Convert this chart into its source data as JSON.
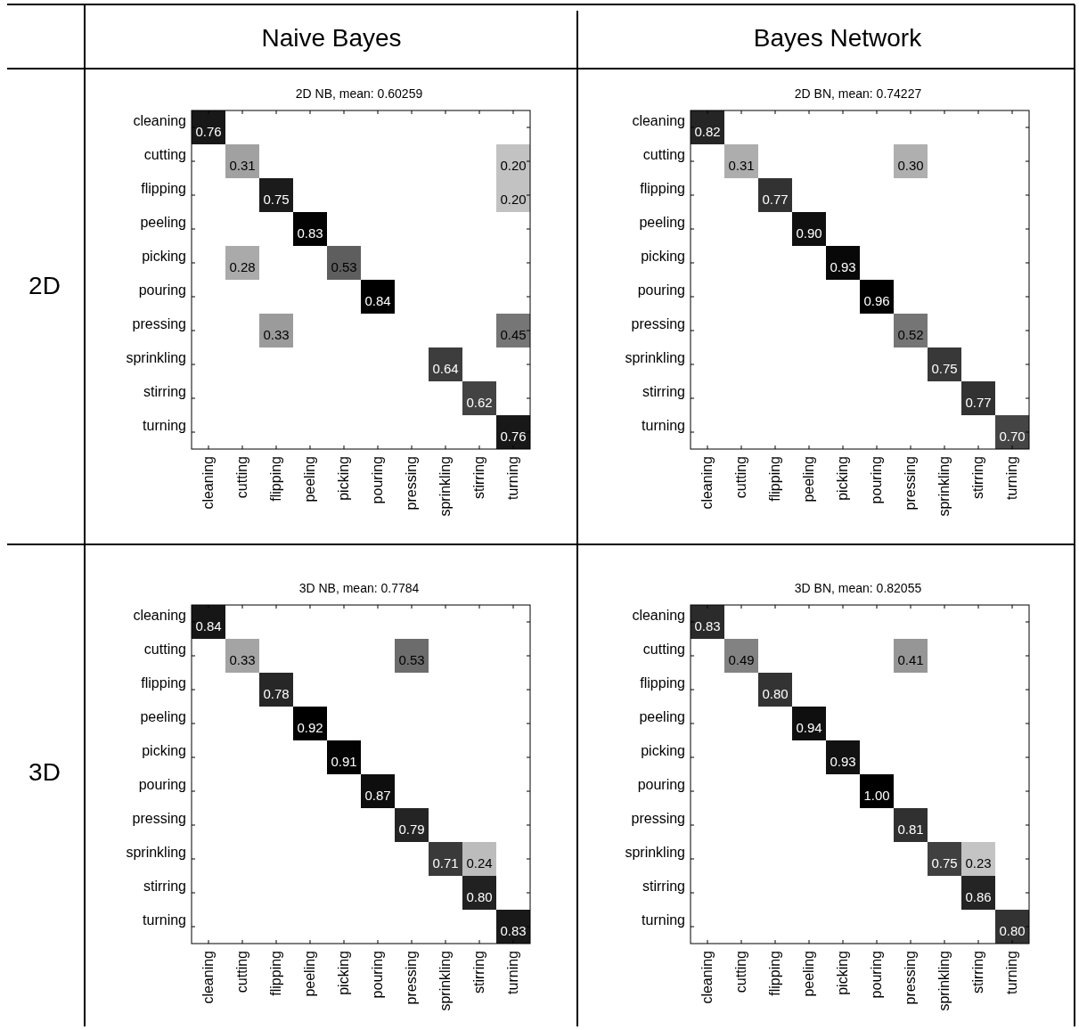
{
  "chart_data": [
    {
      "type": "heatmap",
      "title": "2D NB, mean: 0.60259",
      "annotations": [
        "Naive Bayes",
        "2D"
      ],
      "categories": [
        "cleaning",
        "cutting",
        "flipping",
        "peeling",
        "picking",
        "pouring",
        "pressing",
        "sprinkling",
        "stirring",
        "turning"
      ],
      "y_categories": [
        "cleaning",
        "cutting",
        "flipping",
        "peeling",
        "picking",
        "pouring",
        "pressing",
        "sprinkling",
        "stirring",
        "turning"
      ],
      "cells": [
        [
          0.76,
          null,
          null,
          null,
          null,
          null,
          null,
          null,
          null,
          null
        ],
        [
          null,
          0.31,
          null,
          null,
          null,
          null,
          null,
          null,
          null,
          0.2
        ],
        [
          null,
          null,
          0.75,
          null,
          null,
          null,
          null,
          null,
          null,
          0.2
        ],
        [
          null,
          null,
          null,
          0.83,
          null,
          null,
          null,
          null,
          null,
          null
        ],
        [
          null,
          0.28,
          null,
          null,
          0.53,
          null,
          null,
          null,
          null,
          null
        ],
        [
          null,
          null,
          null,
          null,
          null,
          0.84,
          null,
          null,
          null,
          null
        ],
        [
          null,
          null,
          0.33,
          null,
          null,
          null,
          null,
          null,
          null,
          0.45
        ],
        [
          null,
          null,
          null,
          null,
          null,
          null,
          null,
          0.64,
          null,
          null
        ],
        [
          null,
          null,
          null,
          null,
          null,
          null,
          null,
          null,
          0.62,
          null
        ],
        [
          null,
          null,
          null,
          null,
          null,
          null,
          null,
          null,
          null,
          0.76
        ]
      ],
      "cell_labels": [
        [
          "0.76",
          null,
          null,
          null,
          null,
          null,
          null,
          null,
          null,
          null
        ],
        [
          null,
          "0.31",
          null,
          null,
          null,
          null,
          null,
          null,
          null,
          "0.20"
        ],
        [
          null,
          null,
          "0.75",
          null,
          null,
          null,
          null,
          null,
          null,
          "0.20"
        ],
        [
          null,
          null,
          null,
          "0.83",
          null,
          null,
          null,
          null,
          null,
          null
        ],
        [
          null,
          "0.28",
          null,
          null,
          "0.53",
          null,
          null,
          null,
          null,
          null
        ],
        [
          null,
          null,
          null,
          null,
          null,
          "0.84",
          null,
          null,
          null,
          null
        ],
        [
          null,
          null,
          "0.33",
          null,
          null,
          null,
          null,
          null,
          null,
          "0.45"
        ],
        [
          null,
          null,
          null,
          null,
          null,
          null,
          null,
          "0.64",
          null,
          null
        ],
        [
          null,
          null,
          null,
          null,
          null,
          null,
          null,
          null,
          "0.62",
          null
        ],
        [
          null,
          null,
          null,
          null,
          null,
          null,
          null,
          null,
          null,
          "0.76"
        ]
      ]
    },
    {
      "type": "heatmap",
      "title": "2D BN, mean: 0.74227",
      "annotations": [
        "Bayes Network"
      ],
      "categories": [
        "cleaning",
        "cutting",
        "flipping",
        "peeling",
        "picking",
        "pouring",
        "pressing",
        "sprinkling",
        "stirring",
        "turning"
      ],
      "y_categories": [
        "cleaning",
        "cutting",
        "flipping",
        "peeling",
        "picking",
        "pouring",
        "pressing",
        "sprinkling",
        "stirring",
        "turning"
      ],
      "cells": [
        [
          0.82,
          null,
          null,
          null,
          null,
          null,
          null,
          null,
          null,
          null
        ],
        [
          null,
          0.31,
          null,
          null,
          null,
          null,
          0.3,
          null,
          null,
          null
        ],
        [
          null,
          null,
          0.77,
          null,
          null,
          null,
          null,
          null,
          null,
          null
        ],
        [
          null,
          null,
          null,
          0.9,
          null,
          null,
          null,
          null,
          null,
          null
        ],
        [
          null,
          null,
          null,
          null,
          0.93,
          null,
          null,
          null,
          null,
          null
        ],
        [
          null,
          null,
          null,
          null,
          null,
          0.96,
          null,
          null,
          null,
          null
        ],
        [
          null,
          null,
          null,
          null,
          null,
          null,
          0.52,
          null,
          null,
          null
        ],
        [
          null,
          null,
          null,
          null,
          null,
          null,
          null,
          0.75,
          null,
          null
        ],
        [
          null,
          null,
          null,
          null,
          null,
          null,
          null,
          null,
          0.77,
          null
        ],
        [
          null,
          null,
          null,
          null,
          null,
          null,
          null,
          null,
          null,
          0.7
        ]
      ],
      "cell_labels": [
        [
          "0.82",
          null,
          null,
          null,
          null,
          null,
          null,
          null,
          null,
          null
        ],
        [
          null,
          "0.31",
          null,
          null,
          null,
          null,
          "0.30",
          null,
          null,
          null
        ],
        [
          null,
          null,
          "0.77",
          null,
          null,
          null,
          null,
          null,
          null,
          null
        ],
        [
          null,
          null,
          null,
          "0.90",
          null,
          null,
          null,
          null,
          null,
          null
        ],
        [
          null,
          null,
          null,
          null,
          "0.93",
          null,
          null,
          null,
          null,
          null
        ],
        [
          null,
          null,
          null,
          null,
          null,
          "0.96",
          null,
          null,
          null,
          null
        ],
        [
          null,
          null,
          null,
          null,
          null,
          null,
          "0.52",
          null,
          null,
          null
        ],
        [
          null,
          null,
          null,
          null,
          null,
          null,
          null,
          "0.75",
          null,
          null
        ],
        [
          null,
          null,
          null,
          null,
          null,
          null,
          null,
          null,
          "0.77",
          null
        ],
        [
          null,
          null,
          null,
          null,
          null,
          null,
          null,
          null,
          null,
          "0.70"
        ]
      ]
    },
    {
      "type": "heatmap",
      "title": "3D NB, mean: 0.7784",
      "annotations": [
        "3D"
      ],
      "categories": [
        "cleaning",
        "cutting",
        "flipping",
        "peeling",
        "picking",
        "pouring",
        "pressing",
        "sprinkling",
        "stirring",
        "turning"
      ],
      "y_categories": [
        "cleaning",
        "cutting",
        "flipping",
        "peeling",
        "picking",
        "pouring",
        "pressing",
        "sprinkling",
        "stirring",
        "turning"
      ],
      "cells": [
        [
          0.84,
          null,
          null,
          null,
          null,
          null,
          null,
          null,
          null,
          null
        ],
        [
          null,
          0.33,
          null,
          null,
          null,
          null,
          0.53,
          null,
          null,
          null
        ],
        [
          null,
          null,
          0.78,
          null,
          null,
          null,
          null,
          null,
          null,
          null
        ],
        [
          null,
          null,
          null,
          0.92,
          null,
          null,
          null,
          null,
          null,
          null
        ],
        [
          null,
          null,
          null,
          null,
          0.91,
          null,
          null,
          null,
          null,
          null
        ],
        [
          null,
          null,
          null,
          null,
          null,
          0.87,
          null,
          null,
          null,
          null
        ],
        [
          null,
          null,
          null,
          null,
          null,
          null,
          0.79,
          null,
          null,
          null
        ],
        [
          null,
          null,
          null,
          null,
          null,
          null,
          null,
          0.71,
          0.24,
          null
        ],
        [
          null,
          null,
          null,
          null,
          null,
          null,
          null,
          null,
          0.8,
          null
        ],
        [
          null,
          null,
          null,
          null,
          null,
          null,
          null,
          null,
          null,
          0.83
        ]
      ],
      "cell_labels": [
        [
          "0.84",
          null,
          null,
          null,
          null,
          null,
          null,
          null,
          null,
          null
        ],
        [
          null,
          "0.33",
          null,
          null,
          null,
          null,
          "0.53",
          null,
          null,
          null
        ],
        [
          null,
          null,
          "0.78",
          null,
          null,
          null,
          null,
          null,
          null,
          null
        ],
        [
          null,
          null,
          null,
          "0.92",
          null,
          null,
          null,
          null,
          null,
          null
        ],
        [
          null,
          null,
          null,
          null,
          "0.91",
          null,
          null,
          null,
          null,
          null
        ],
        [
          null,
          null,
          null,
          null,
          null,
          "0.87",
          null,
          null,
          null,
          null
        ],
        [
          null,
          null,
          null,
          null,
          null,
          null,
          "0.79",
          null,
          null,
          null
        ],
        [
          null,
          null,
          null,
          null,
          null,
          null,
          null,
          "0.71",
          "0.24",
          null
        ],
        [
          null,
          null,
          null,
          null,
          null,
          null,
          null,
          null,
          "0.80",
          null
        ],
        [
          null,
          null,
          null,
          null,
          null,
          null,
          null,
          null,
          null,
          "0.83"
        ]
      ]
    },
    {
      "type": "heatmap",
      "title": "3D BN, mean: 0.82055",
      "categories": [
        "cleaning",
        "cutting",
        "flipping",
        "peeling",
        "picking",
        "pouring",
        "pressing",
        "sprinkling",
        "stirring",
        "turning"
      ],
      "y_categories": [
        "cleaning",
        "cutting",
        "flipping",
        "peeling",
        "picking",
        "pouring",
        "pressing",
        "sprinkling",
        "stirring",
        "turning"
      ],
      "cells": [
        [
          0.83,
          null,
          null,
          null,
          null,
          null,
          null,
          null,
          null,
          null
        ],
        [
          null,
          0.49,
          null,
          null,
          null,
          null,
          0.41,
          null,
          null,
          null
        ],
        [
          null,
          null,
          0.8,
          null,
          null,
          null,
          null,
          null,
          null,
          null
        ],
        [
          null,
          null,
          null,
          0.94,
          null,
          null,
          null,
          null,
          null,
          null
        ],
        [
          null,
          null,
          null,
          null,
          0.93,
          null,
          null,
          null,
          null,
          null
        ],
        [
          null,
          null,
          null,
          null,
          null,
          1,
          null,
          null,
          null,
          null
        ],
        [
          null,
          null,
          null,
          null,
          null,
          null,
          0.81,
          null,
          null,
          null
        ],
        [
          null,
          null,
          null,
          null,
          null,
          null,
          null,
          0.75,
          0.23,
          null
        ],
        [
          null,
          null,
          null,
          null,
          null,
          null,
          null,
          null,
          0.86,
          null
        ],
        [
          null,
          null,
          null,
          null,
          null,
          null,
          null,
          null,
          null,
          0.8
        ]
      ],
      "cell_labels": [
        [
          "0.83",
          null,
          null,
          null,
          null,
          null,
          null,
          null,
          null,
          null
        ],
        [
          null,
          "0.49",
          null,
          null,
          null,
          null,
          "0.41",
          null,
          null,
          null
        ],
        [
          null,
          null,
          "0.80",
          null,
          null,
          null,
          null,
          null,
          null,
          null
        ],
        [
          null,
          null,
          null,
          "0.94",
          null,
          null,
          null,
          null,
          null,
          null
        ],
        [
          null,
          null,
          null,
          null,
          "0.93",
          null,
          null,
          null,
          null,
          null
        ],
        [
          null,
          null,
          null,
          null,
          null,
          "1.00",
          null,
          null,
          null,
          null
        ],
        [
          null,
          null,
          null,
          null,
          null,
          null,
          "0.81",
          null,
          null,
          null
        ],
        [
          null,
          null,
          null,
          null,
          null,
          null,
          null,
          "0.75",
          "0.23",
          null
        ],
        [
          null,
          null,
          null,
          null,
          null,
          null,
          null,
          null,
          "0.86",
          null
        ],
        [
          null,
          null,
          null,
          null,
          null,
          null,
          null,
          null,
          null,
          "0.80"
        ]
      ]
    }
  ]
}
